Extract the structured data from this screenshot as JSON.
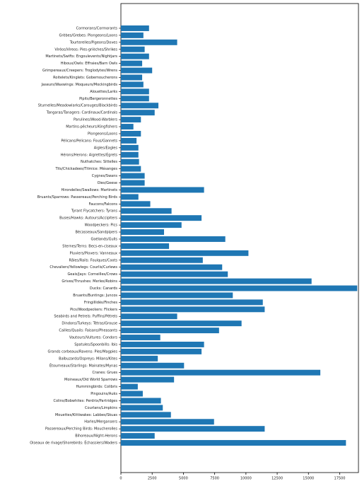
{
  "chart_data": {
    "type": "barh",
    "categories": [
      "Cormorans/Cormorants",
      "Grèbes/Grebes: Plongeons/Loons",
      "Tourterelles/Pigeons/Doves",
      "Viréos/Vireos: Pies-grièches/Shrikes",
      "Martinets/Swifts: Engoulevents/Nightjars",
      "Hiboux/Owls: Effraies/Barn Owls",
      "Grimpereaux/Creepers: Troglodytes/Wrens",
      "Roitelets/Kinglets: Gobemoucherons",
      "Jaseurs/Waxwings: Moqueurs/Mockingbirds",
      "Alouettes/Larks",
      "Pipits/Bergeronnettes",
      "Sturnelles/Meadowlarks/Carouges/Blackbirds",
      "Tangaras/Tanagers: Cardinaux/Cardinals",
      "Parulines/Wood-Warblers",
      "Martins-pêcheurs/Kingfishers",
      "Plongeons/Loons",
      "Pélicans/Pelicans: Fous/Gannets",
      "Aigles/Eagles",
      "Hérons/Herons: Aigrettes/Egrets",
      "Nuthatches: Sittelles",
      "Tits/Chickadees/Titmice: Mésanges",
      "Cygnes/Swans",
      "Oies/Geese",
      "Hirondelles/Swallows: Martinets",
      "Bruants/Sparrows: Passereaux/Perching Birds",
      "Faucons/Falcons",
      "Tyrant Flycatchers: Tyrans",
      "Buses/Hawks: Autours/Accipiters",
      "Woodpeckers: Pics",
      "Bécasseaux/Sandpipers",
      "Goélands/Gulls",
      "Sternes/Terns: Becs-en-ciseaux",
      "Pluviers/Plovers: Vanneaux",
      "Râles/Rails: Foulques/Coots",
      "Chevaliers/Yellowlegs: Courlis/Curlews",
      "Geais/Jays: Corneilles/Crows",
      "Grives/Thrushes: Merles/Robins",
      "Ducks: Canards",
      "Bruants/Buntings: Juncos",
      "Fringillidés/Finches",
      "Pics/Woodpeckers: Flickers",
      "Seabirds and Petrels: Puffins/Pétrels",
      "Dindons/Turkeys: Tétras/Grouse",
      "Cailles/Quails: Faisans/Pheasants",
      "Vautours/Vultures: Condors",
      "Spatules/Spoonbills: Ibis",
      "Grands corbeaux/Ravens: Pies/Magpies",
      "Balbuzards/Ospreys: Milans/Kites",
      "Étourneaux/Starlings: Mainates/Mynas",
      "Cranes: Grues",
      "Moineaux/Old World Sparrows",
      "Hummingbirds: Colibris",
      "Pingouins/Auks",
      "Colins/Bobwhites: Perdrix/Partridges",
      "Courlans/Limpkins",
      "Mouettes/Kittiwakes: Labbes/Skuas",
      "Harles/Mergansers",
      "Passereaux/Perching Birds: Moucherolles",
      "Bihoreaux/Night-Herons",
      "Oiseaux de rivage/Shorebirds: Échassiers/Waders"
    ],
    "values": [
      2250,
      1800,
      4500,
      1900,
      2250,
      1700,
      2500,
      1700,
      1800,
      2250,
      2250,
      3000,
      2700,
      1600,
      1000,
      1600,
      1250,
      1400,
      1400,
      1450,
      1600,
      1900,
      1900,
      6650,
      1400,
      2350,
      4050,
      6450,
      4850,
      3450,
      8350,
      3850,
      10200,
      6550,
      8100,
      8550,
      15250,
      18900,
      8950,
      11350,
      11500,
      4500,
      9650,
      7850,
      3150,
      6650,
      6450,
      2950,
      5050,
      15950,
      4250,
      1350,
      1750,
      3200,
      3350,
      4000,
      7450,
      11500,
      2700,
      18000
    ],
    "color": "#1f77b4",
    "xlim": [
      0,
      19000
    ],
    "xticks": [
      0,
      2500,
      5000,
      7500,
      10000,
      12500,
      15000,
      17500
    ]
  }
}
